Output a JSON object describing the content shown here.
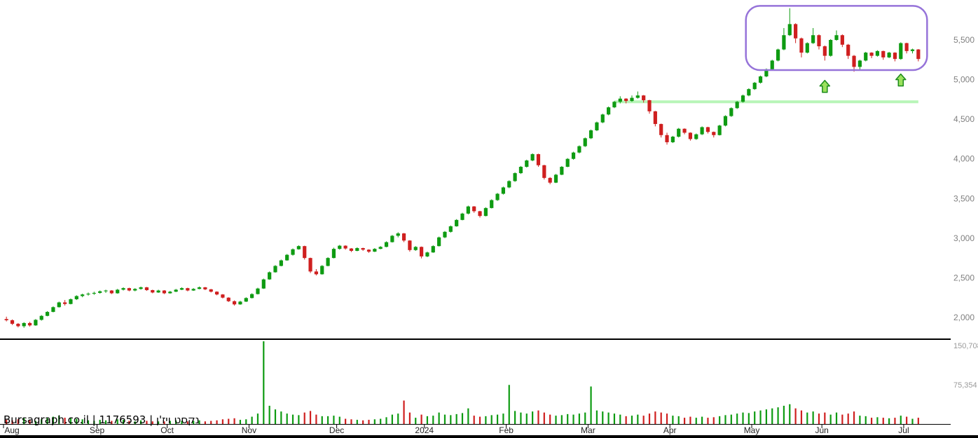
{
  "footer": {
    "text": "Bursagraph.co.il | 1176593 | נקסט ויז'ן"
  },
  "chart_data": {
    "type": "candlestick",
    "title": "",
    "xlabel": "",
    "ylabel": "",
    "legend": "none",
    "grid": "off",
    "colors": {
      "up": "#0e9b12",
      "down": "#cf1f1f"
    },
    "y_axis": {
      "side": "right",
      "ticks": [
        {
          "value": 5500,
          "label": "5,500"
        },
        {
          "value": 5000,
          "label": "5,000"
        },
        {
          "value": 4500,
          "label": "4,500"
        },
        {
          "value": 4000,
          "label": "4,000"
        },
        {
          "value": 3500,
          "label": "3,500"
        },
        {
          "value": 3000,
          "label": "3,000"
        },
        {
          "value": 2500,
          "label": "2,500"
        },
        {
          "value": 2000,
          "label": "2,000"
        }
      ],
      "range": [
        1735,
        6000
      ]
    },
    "volume_axis": {
      "ticks": [
        {
          "value": 150708,
          "label": "150,708"
        },
        {
          "value": 75354,
          "label": "75,354"
        }
      ]
    },
    "x_axis": {
      "months": [
        {
          "label": "Aug",
          "count": 16
        },
        {
          "label": "Sep",
          "count": 12
        },
        {
          "label": "Oct",
          "count": 14
        },
        {
          "label": "Nov",
          "count": 15
        },
        {
          "label": "Dec",
          "count": 15
        },
        {
          "label": "2024",
          "count": 14
        },
        {
          "label": "Feb",
          "count": 14
        },
        {
          "label": "Mar",
          "count": 14
        },
        {
          "label": "Apr",
          "count": 14
        },
        {
          "label": "May",
          "count": 12
        },
        {
          "label": "Jun",
          "count": 14
        },
        {
          "label": "Jul",
          "count": 3
        }
      ]
    },
    "candles_format": [
      "open",
      "high",
      "low",
      "close",
      "volume"
    ],
    "candles": [
      [
        1980,
        2010,
        1950,
        1965,
        8000
      ],
      [
        1965,
        1975,
        1905,
        1920,
        7000
      ],
      [
        1920,
        1930,
        1875,
        1890,
        9000
      ],
      [
        1890,
        1940,
        1870,
        1930,
        11000
      ],
      [
        1930,
        1945,
        1885,
        1900,
        8000
      ],
      [
        1900,
        1980,
        1895,
        1970,
        6000
      ],
      [
        1970,
        2030,
        1960,
        2020,
        9000
      ],
      [
        2020,
        2080,
        2015,
        2070,
        12000
      ],
      [
        2070,
        2140,
        2065,
        2130,
        14000
      ],
      [
        2130,
        2200,
        2125,
        2190,
        16000
      ],
      [
        2190,
        2220,
        2150,
        2170,
        12000
      ],
      [
        2170,
        2240,
        2165,
        2230,
        12000
      ],
      [
        2230,
        2280,
        2220,
        2270,
        10000
      ],
      [
        2270,
        2300,
        2255,
        2290,
        9000
      ],
      [
        2290,
        2315,
        2275,
        2300,
        7000
      ],
      [
        2300,
        2325,
        2285,
        2310,
        6000
      ],
      [
        2310,
        2340,
        2300,
        2330,
        8000
      ],
      [
        2330,
        2350,
        2310,
        2340,
        7000
      ],
      [
        2340,
        2345,
        2295,
        2305,
        6000
      ],
      [
        2305,
        2360,
        2300,
        2350,
        9000
      ],
      [
        2350,
        2380,
        2340,
        2370,
        8000
      ],
      [
        2370,
        2375,
        2330,
        2340,
        6000
      ],
      [
        2340,
        2370,
        2330,
        2360,
        5000
      ],
      [
        2360,
        2390,
        2350,
        2380,
        7000
      ],
      [
        2380,
        2385,
        2335,
        2345,
        6000
      ],
      [
        2345,
        2350,
        2305,
        2315,
        5000
      ],
      [
        2315,
        2350,
        2310,
        2340,
        5000
      ],
      [
        2340,
        2345,
        2295,
        2305,
        5000
      ],
      [
        2305,
        2335,
        2300,
        2325,
        6000
      ],
      [
        2325,
        2360,
        2320,
        2350,
        7000
      ],
      [
        2350,
        2380,
        2345,
        2370,
        6000
      ],
      [
        2370,
        2375,
        2330,
        2340,
        5000
      ],
      [
        2340,
        2370,
        2335,
        2360,
        6000
      ],
      [
        2360,
        2390,
        2355,
        2380,
        7000
      ],
      [
        2380,
        2385,
        2345,
        2355,
        5000
      ],
      [
        2355,
        2360,
        2315,
        2325,
        6000
      ],
      [
        2325,
        2330,
        2280,
        2290,
        7000
      ],
      [
        2290,
        2295,
        2240,
        2250,
        9000
      ],
      [
        2250,
        2255,
        2195,
        2205,
        10000
      ],
      [
        2205,
        2215,
        2150,
        2165,
        11000
      ],
      [
        2165,
        2210,
        2160,
        2200,
        8000
      ],
      [
        2200,
        2255,
        2195,
        2245,
        9000
      ],
      [
        2245,
        2305,
        2240,
        2295,
        14000
      ],
      [
        2295,
        2375,
        2290,
        2365,
        20000
      ],
      [
        2365,
        2490,
        2360,
        2480,
        160000
      ],
      [
        2480,
        2580,
        2475,
        2570,
        35000
      ],
      [
        2570,
        2660,
        2565,
        2650,
        28000
      ],
      [
        2650,
        2730,
        2645,
        2720,
        24000
      ],
      [
        2720,
        2800,
        2715,
        2790,
        20000
      ],
      [
        2790,
        2870,
        2780,
        2860,
        18000
      ],
      [
        2860,
        2910,
        2855,
        2900,
        17000
      ],
      [
        2900,
        2905,
        2730,
        2750,
        22000
      ],
      [
        2750,
        2755,
        2560,
        2580,
        25000
      ],
      [
        2580,
        2610,
        2530,
        2545,
        18000
      ],
      [
        2545,
        2660,
        2540,
        2650,
        15000
      ],
      [
        2650,
        2760,
        2645,
        2750,
        15000
      ],
      [
        2750,
        2880,
        2745,
        2865,
        16000
      ],
      [
        2865,
        2915,
        2855,
        2905,
        14000
      ],
      [
        2905,
        2910,
        2855,
        2870,
        10000
      ],
      [
        2870,
        2875,
        2825,
        2840,
        9000
      ],
      [
        2840,
        2885,
        2835,
        2875,
        8000
      ],
      [
        2875,
        2880,
        2840,
        2855,
        7000
      ],
      [
        2855,
        2860,
        2815,
        2830,
        8000
      ],
      [
        2830,
        2875,
        2825,
        2865,
        9000
      ],
      [
        2865,
        2900,
        2860,
        2890,
        10000
      ],
      [
        2890,
        2960,
        2885,
        2950,
        13000
      ],
      [
        2950,
        3040,
        2945,
        3030,
        18000
      ],
      [
        3030,
        3075,
        3010,
        3060,
        20000
      ],
      [
        3060,
        3065,
        2950,
        2970,
        45000
      ],
      [
        2970,
        2975,
        2830,
        2850,
        22000
      ],
      [
        2850,
        2900,
        2840,
        2890,
        12000
      ],
      [
        2890,
        2895,
        2745,
        2770,
        18000
      ],
      [
        2770,
        2830,
        2760,
        2820,
        15000
      ],
      [
        2820,
        2910,
        2815,
        2900,
        16000
      ],
      [
        2900,
        3020,
        2895,
        3010,
        22000
      ],
      [
        3010,
        3090,
        3000,
        3080,
        18000
      ],
      [
        3080,
        3160,
        3070,
        3150,
        17000
      ],
      [
        3150,
        3240,
        3145,
        3230,
        19000
      ],
      [
        3230,
        3320,
        3225,
        3310,
        21000
      ],
      [
        3310,
        3410,
        3300,
        3400,
        30000
      ],
      [
        3400,
        3405,
        3320,
        3340,
        16000
      ],
      [
        3340,
        3345,
        3260,
        3280,
        14000
      ],
      [
        3280,
        3390,
        3275,
        3380,
        15000
      ],
      [
        3380,
        3490,
        3375,
        3480,
        17000
      ],
      [
        3480,
        3570,
        3470,
        3560,
        18000
      ],
      [
        3560,
        3650,
        3550,
        3640,
        20000
      ],
      [
        3640,
        3730,
        3630,
        3720,
        75000
      ],
      [
        3720,
        3830,
        3710,
        3820,
        25000
      ],
      [
        3820,
        3910,
        3810,
        3900,
        22000
      ],
      [
        3900,
        3990,
        3890,
        3980,
        20000
      ],
      [
        3980,
        4070,
        3970,
        4060,
        24000
      ],
      [
        4060,
        4065,
        3900,
        3920,
        26000
      ],
      [
        3920,
        3925,
        3740,
        3760,
        22000
      ],
      [
        3760,
        3770,
        3680,
        3700,
        18000
      ],
      [
        3700,
        3810,
        3695,
        3800,
        16000
      ],
      [
        3800,
        3910,
        3795,
        3900,
        17000
      ],
      [
        3900,
        4010,
        3895,
        4000,
        19000
      ],
      [
        4000,
        4090,
        3990,
        4080,
        18000
      ],
      [
        4080,
        4170,
        4070,
        4160,
        20000
      ],
      [
        4160,
        4270,
        4150,
        4260,
        22000
      ],
      [
        4260,
        4370,
        4250,
        4360,
        72000
      ],
      [
        4360,
        4470,
        4350,
        4460,
        26000
      ],
      [
        4460,
        4570,
        4450,
        4560,
        24000
      ],
      [
        4560,
        4660,
        4550,
        4650,
        22000
      ],
      [
        4650,
        4730,
        4640,
        4720,
        20000
      ],
      [
        4720,
        4790,
        4700,
        4760,
        18000
      ],
      [
        4760,
        4765,
        4700,
        4730,
        15000
      ],
      [
        4730,
        4800,
        4720,
        4770,
        16000
      ],
      [
        4770,
        4850,
        4760,
        4800,
        18000
      ],
      [
        4800,
        4805,
        4710,
        4740,
        16000
      ],
      [
        4740,
        4745,
        4570,
        4600,
        20000
      ],
      [
        4600,
        4605,
        4410,
        4440,
        24000
      ],
      [
        4440,
        4445,
        4270,
        4300,
        22000
      ],
      [
        4300,
        4330,
        4180,
        4210,
        20000
      ],
      [
        4210,
        4290,
        4200,
        4280,
        16000
      ],
      [
        4280,
        4390,
        4270,
        4380,
        15000
      ],
      [
        4380,
        4385,
        4310,
        4330,
        12000
      ],
      [
        4330,
        4335,
        4230,
        4250,
        14000
      ],
      [
        4250,
        4320,
        4240,
        4310,
        12000
      ],
      [
        4310,
        4410,
        4300,
        4400,
        14000
      ],
      [
        4400,
        4405,
        4320,
        4340,
        12000
      ],
      [
        4340,
        4345,
        4270,
        4300,
        13000
      ],
      [
        4300,
        4430,
        4295,
        4420,
        15000
      ],
      [
        4420,
        4550,
        4410,
        4540,
        17000
      ],
      [
        4540,
        4650,
        4530,
        4640,
        18000
      ],
      [
        4640,
        4730,
        4630,
        4720,
        20000
      ],
      [
        4720,
        4810,
        4710,
        4800,
        22000
      ],
      [
        4800,
        4890,
        4790,
        4880,
        21000
      ],
      [
        4880,
        4970,
        4870,
        4960,
        24000
      ],
      [
        4960,
        5050,
        4950,
        5040,
        26000
      ],
      [
        5040,
        5140,
        5030,
        5130,
        28000
      ],
      [
        5130,
        5250,
        5120,
        5240,
        30000
      ],
      [
        5240,
        5390,
        5230,
        5380,
        32000
      ],
      [
        5380,
        5650,
        5370,
        5560,
        35000
      ],
      [
        5560,
        5900,
        5550,
        5700,
        38000
      ],
      [
        5700,
        5710,
        5460,
        5520,
        30000
      ],
      [
        5520,
        5530,
        5280,
        5340,
        26000
      ],
      [
        5340,
        5470,
        5330,
        5460,
        22000
      ],
      [
        5460,
        5650,
        5450,
        5560,
        24000
      ],
      [
        5560,
        5570,
        5380,
        5420,
        20000
      ],
      [
        5420,
        5430,
        5240,
        5300,
        22000
      ],
      [
        5300,
        5510,
        5290,
        5500,
        18000
      ],
      [
        5500,
        5620,
        5490,
        5560,
        22000
      ],
      [
        5560,
        5570,
        5410,
        5440,
        18000
      ],
      [
        5440,
        5450,
        5260,
        5300,
        20000
      ],
      [
        5300,
        5310,
        5100,
        5160,
        24000
      ],
      [
        5160,
        5250,
        5120,
        5240,
        16000
      ],
      [
        5240,
        5350,
        5230,
        5340,
        15000
      ],
      [
        5340,
        5345,
        5270,
        5300,
        12000
      ],
      [
        5300,
        5370,
        5290,
        5360,
        13000
      ],
      [
        5360,
        5365,
        5250,
        5280,
        12000
      ],
      [
        5280,
        5350,
        5270,
        5340,
        11000
      ],
      [
        5340,
        5345,
        5230,
        5260,
        12000
      ],
      [
        5260,
        5470,
        5250,
        5460,
        16000
      ],
      [
        5460,
        5465,
        5330,
        5360,
        14000
      ],
      [
        5360,
        5390,
        5330,
        5380,
        10000
      ],
      [
        5380,
        5385,
        5230,
        5260,
        12000
      ]
    ],
    "annotations": {
      "consolidation_box": {
        "start_index": 127,
        "end_index": 158,
        "price_low": 5120,
        "price_high": 5930,
        "color": "#9673d9"
      },
      "support_line": {
        "price": 4720,
        "start_index": 104,
        "end_index": 156,
        "color": "#b8f5b8"
      },
      "buy_arrows": [
        {
          "index": 140,
          "price": 4990
        },
        {
          "index": 153,
          "price": 5070
        }
      ],
      "arrow_fill": "#9be15d",
      "arrow_stroke": "#1b8a1b"
    }
  }
}
